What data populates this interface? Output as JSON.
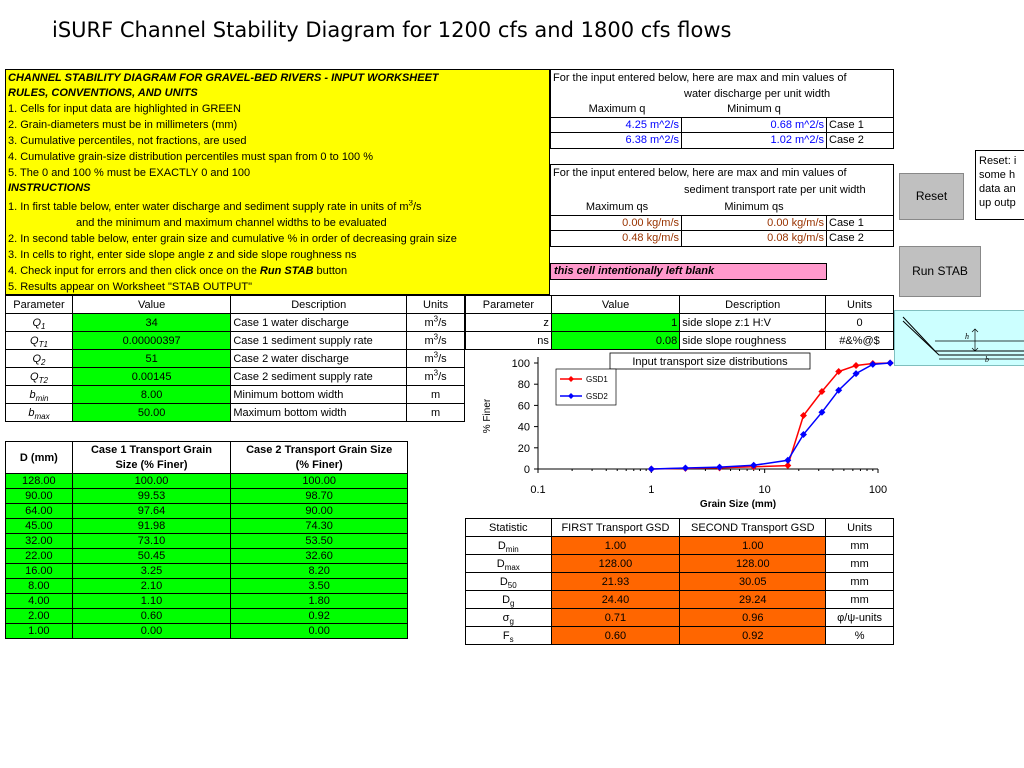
{
  "title": "iSURF Channel Stability Diagram for 1200 cfs and 1800 cfs flows",
  "instructions": {
    "heading1": "CHANNEL STABILITY DIAGRAM  FOR GRAVEL-BED RIVERS  - INPUT WORKSHEET",
    "heading2": "RULES, CONVENTIONS, AND UNITS",
    "rules": [
      "1. Cells for input data are highlighted in GREEN",
      "2. Grain-diameters must be in millimeters (mm)",
      "3. Cumulative percentiles, not fractions, are used",
      "4. Cumulative grain-size distribution percentiles must span from 0 to 100 %",
      "5.  The 0 and 100 % must be EXACTLY 0 and 100"
    ],
    "heading3": "INSTRUCTIONS",
    "steps": [
      "1. In first table below, enter water discharge and sediment supply rate in units of m",
      "and the minimum and maximum channel widths to be evaluated",
      "2. In second table below, enter grain size and cumulative % in order of decreasing grain size",
      "3.  In cells to right, enter side slope angle z and side slope roughness ns",
      "4. Check input for errors and then click once on the ",
      "Run STAB",
      " button",
      "5. Results appear on Worksheet \"STAB OUTPUT\""
    ],
    "step1_sup": "3",
    "step1_end": "/s"
  },
  "q_range": {
    "line1": "For the input entered below, here are max and min values of",
    "line2": "water discharge per unit width",
    "col_max": "Maximum q",
    "col_min": "Minimum q",
    "rows": [
      {
        "max": "4.25 m^2/s",
        "min": "0.68 m^2/s",
        "case": "Case 1"
      },
      {
        "max": "6.38 m^2/s",
        "min": "1.02 m^2/s",
        "case": "Case 2"
      }
    ]
  },
  "qs_range": {
    "line1": "For the input entered below, here are max and min values of",
    "line2": "sediment transport rate per unit width",
    "col_max": "Maximum qs",
    "col_min": "Minimum qs",
    "rows": [
      {
        "max": "0.00 kg/m/s",
        "min": "0.00 kg/m/s",
        "case": "Case 1"
      },
      {
        "max": "0.48 kg/m/s",
        "min": "0.08 kg/m/s",
        "case": "Case 2"
      }
    ]
  },
  "blank_cell": "this cell intentionally left blank",
  "buttons": {
    "reset": "Reset",
    "run": "Run STAB"
  },
  "note": {
    "lines": [
      "Reset: i",
      "some h",
      "data an",
      "up outp"
    ]
  },
  "param_table": {
    "headers": [
      "Parameter",
      "Value",
      "Description",
      "Units"
    ],
    "rows": [
      {
        "p": "Q",
        "sub": "1",
        "value": "34",
        "desc": "Case 1 water discharge",
        "unit": "m",
        "usup": "3",
        "uend": "/s"
      },
      {
        "p": "Q",
        "sub": "T1",
        "value": "0.00000397",
        "desc": "Case 1 sediment supply rate",
        "unit": "m",
        "usup": "3",
        "uend": "/s"
      },
      {
        "p": "Q",
        "sub": "2",
        "value": "51",
        "desc": "Case 2 water discharge",
        "unit": "m",
        "usup": "3",
        "uend": "/s"
      },
      {
        "p": "Q",
        "sub": "T2",
        "value": "0.00145",
        "desc": "Case 2 sediment supply rate",
        "unit": "m",
        "usup": "3",
        "uend": "/s"
      },
      {
        "p": "b",
        "sub": "min",
        "value": "8.00",
        "desc": "Minimum bottom width",
        "unit": "m",
        "usup": "",
        "uend": ""
      },
      {
        "p": "b",
        "sub": "max",
        "value": "50.00",
        "desc": "Maximum bottom width",
        "unit": "m",
        "usup": "",
        "uend": ""
      }
    ]
  },
  "side_table": {
    "headers": [
      "Parameter",
      "Value",
      "Description",
      "Units"
    ],
    "rows": [
      {
        "p": "z",
        "value": "1",
        "desc": "side slope z:1 H:V",
        "unit": "0"
      },
      {
        "p": "ns",
        "value": "0.08",
        "desc": "side slope roughness",
        "unit": "#&%@$"
      }
    ]
  },
  "gsd_table": {
    "headers": [
      "D (mm)",
      "Case 1 Transport Grain",
      "Size (% Finer)",
      "Case 2 Transport Grain Size",
      "(% Finer)"
    ],
    "rows": [
      [
        "128.00",
        "100.00",
        "100.00"
      ],
      [
        "90.00",
        "99.53",
        "98.70"
      ],
      [
        "64.00",
        "97.64",
        "90.00"
      ],
      [
        "45.00",
        "91.98",
        "74.30"
      ],
      [
        "32.00",
        "73.10",
        "53.50"
      ],
      [
        "22.00",
        "50.45",
        "32.60"
      ],
      [
        "16.00",
        "3.25",
        "8.20"
      ],
      [
        "8.00",
        "2.10",
        "3.50"
      ],
      [
        "4.00",
        "1.10",
        "1.80"
      ],
      [
        "2.00",
        "0.60",
        "0.92"
      ],
      [
        "1.00",
        "0.00",
        "0.00"
      ]
    ]
  },
  "stat_table": {
    "headers": [
      "Statistic",
      "FIRST Transport GSD",
      "SECOND Transport GSD",
      "Units"
    ],
    "rows": [
      {
        "s": "D",
        "sub": "min",
        "a": "1.00",
        "b": "1.00",
        "u": "mm"
      },
      {
        "s": "D",
        "sub": "max",
        "a": "128.00",
        "b": "128.00",
        "u": "mm"
      },
      {
        "s": "D",
        "sub": "50",
        "a": "21.93",
        "b": "30.05",
        "u": "mm"
      },
      {
        "s": "D",
        "sub": "g",
        "a": "24.40",
        "b": "29.24",
        "u": "mm"
      },
      {
        "s": "σ",
        "sub": "g",
        "a": "0.71",
        "b": "0.96",
        "u": "φ/ψ-units"
      },
      {
        "s": "F",
        "sub": "s",
        "a": "0.60",
        "b": "0.92",
        "u": "%"
      }
    ]
  },
  "diagram": {
    "h_label": "h",
    "b_label": "b"
  },
  "chart_data": {
    "type": "line",
    "title": "Input transport size distributions",
    "xlabel": "Grain Size (mm)",
    "ylabel": "% Finer",
    "xscale": "log",
    "xlim": [
      0.1,
      100
    ],
    "ylim": [
      0,
      100
    ],
    "xticks": [
      "0.1",
      "1",
      "10",
      "100"
    ],
    "yticks": [
      "0",
      "20",
      "40",
      "60",
      "80",
      "100"
    ],
    "legend_position": "top-left",
    "x": [
      1,
      2,
      4,
      8,
      16,
      22,
      32,
      45,
      64,
      90,
      128
    ],
    "series": [
      {
        "name": "GSD1",
        "color": "#ff0000",
        "values": [
          0,
          0.6,
          1.1,
          2.1,
          3.25,
          50.45,
          73.1,
          91.98,
          97.64,
          99.53,
          100
        ]
      },
      {
        "name": "GSD2",
        "color": "#0000ff",
        "values": [
          0,
          0.92,
          1.8,
          3.5,
          8.2,
          32.6,
          53.5,
          74.3,
          90,
          98.7,
          100
        ]
      }
    ]
  }
}
